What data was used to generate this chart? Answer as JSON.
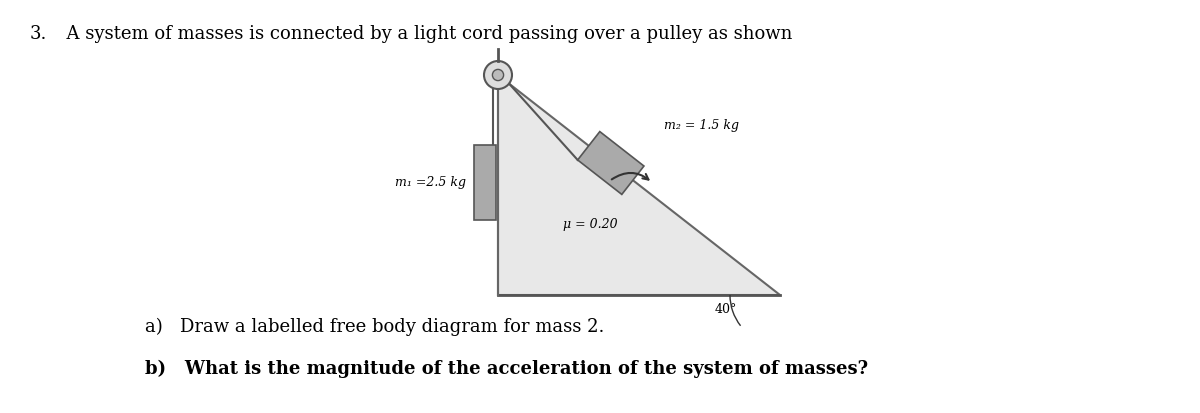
{
  "title_num": "3.",
  "title_text": "  A system of masses is connected by a light cord passing over a pulley as shown",
  "question_a": "a)   Draw a labelled free body diagram for mass 2.",
  "question_b_bold": "b)   What is the magnitude of the acceleration of the system of masses?",
  "bg_color": "#ffffff",
  "text_color": "#000000",
  "label_m1": "m₁ =2.5 kg",
  "label_m2": "m₂ = 1.5 kg",
  "label_mu": "μ = 0.20",
  "label_angle": "40°",
  "triangle_color": "#e8e8e8",
  "triangle_edge_color": "#666666",
  "block1_color": "#aaaaaa",
  "block2_color": "#aaaaaa",
  "rope_color": "#555555",
  "pulley_color_outer": "#dddddd",
  "pulley_color_inner": "#bbbbbb",
  "ground_color": "#555555"
}
